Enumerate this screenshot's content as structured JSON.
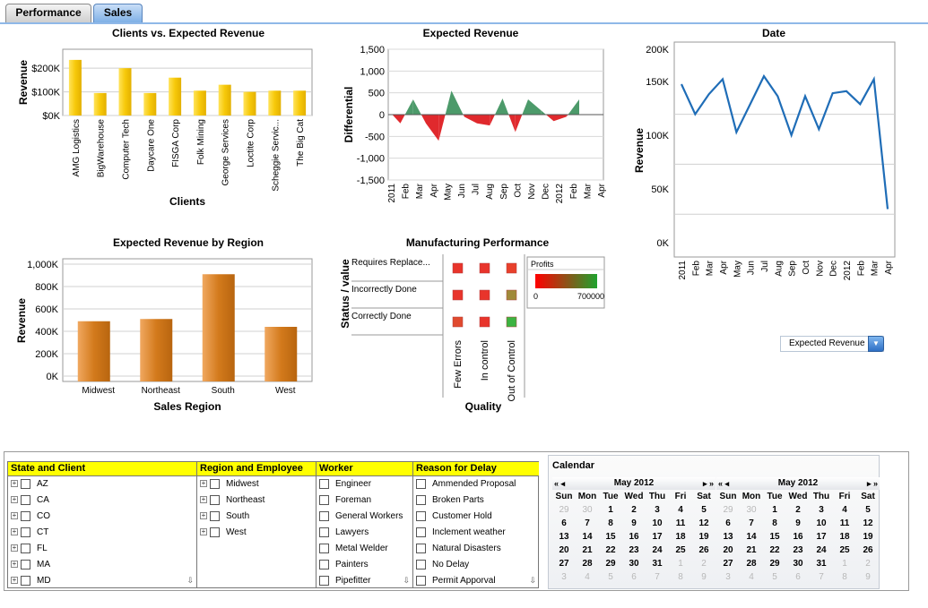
{
  "tabs": [
    {
      "label": "Performance",
      "active": false
    },
    {
      "label": "Sales",
      "active": true
    }
  ],
  "charts": {
    "clients": {
      "title": "Clients vs. Expected Revenue"
    },
    "expected": {
      "title": "Expected Revenue"
    },
    "date": {
      "title": "Date"
    },
    "region": {
      "title": "Expected Revenue by Region"
    },
    "mfg": {
      "title": "Manufacturing Performance"
    }
  },
  "chart_data": [
    {
      "type": "bar",
      "title": "Clients vs. Expected Revenue",
      "xlabel": "Clients",
      "ylabel": "Revenue",
      "categories": [
        "AMG Logistics",
        "BigWarehouse",
        "Computer Tech",
        "Daycare One",
        "FISGA Corp",
        "Folk Mining",
        "George Services",
        "Loctite Corp",
        "Scheggie Servic...",
        "The Big Cat"
      ],
      "values": [
        235000,
        95000,
        200000,
        95000,
        160000,
        105000,
        130000,
        100000,
        105000,
        105000
      ],
      "yticks": [
        "$0K",
        "$100K",
        "$200K"
      ],
      "ylim": [
        0,
        280000
      ],
      "color": "#f7c90a"
    },
    {
      "type": "area",
      "title": "Expected Revenue",
      "ylabel": "Differential",
      "x": [
        "2011",
        "Feb",
        "Mar",
        "Apr",
        "May",
        "Jun",
        "Jul",
        "Aug",
        "Sep",
        "Oct",
        "Nov",
        "Dec",
        "2012",
        "Feb",
        "Mar",
        "Apr"
      ],
      "values": [
        -200,
        350,
        -200,
        -600,
        550,
        -50,
        -200,
        -250,
        370,
        -400,
        350,
        100,
        -150,
        -50,
        350,
        null
      ],
      "yticks": [
        "1,500",
        "1,000",
        "500",
        "0",
        "-500",
        "-1,000",
        "-1,500"
      ],
      "ylim": [
        -1500,
        1500
      ],
      "pos_color": "#4c9a6a",
      "neg_color": "#e0292d"
    },
    {
      "type": "line",
      "title": "Date",
      "ylabel": "Revenue",
      "x": [
        "2011",
        "Feb",
        "Mar",
        "Apr",
        "May",
        "Jun",
        "Jul",
        "Aug",
        "Sep",
        "Oct",
        "Nov",
        "Dec",
        "2012",
        "Feb",
        "Mar",
        "Apr"
      ],
      "values": [
        155000,
        125000,
        145000,
        160000,
        107000,
        135000,
        163000,
        143000,
        104000,
        143000,
        110000,
        146000,
        148000,
        135000,
        160000,
        30000
      ],
      "yticks": [
        "200K",
        "150K",
        "100K",
        "50K",
        "0K"
      ],
      "ylim": [
        0,
        200000
      ],
      "color": "#1f6db7"
    },
    {
      "type": "bar",
      "title": "Expected Revenue by Region",
      "xlabel": "Sales Region",
      "ylabel": "Revenue",
      "categories": [
        "Midwest",
        "Northeast",
        "South",
        "West"
      ],
      "values": [
        490000,
        510000,
        910000,
        440000
      ],
      "yticks": [
        "0K",
        "200K",
        "400K",
        "600K",
        "800K",
        "1,000K"
      ],
      "ylim": [
        0,
        1000000
      ],
      "color": "#d07a1a"
    },
    {
      "type": "heatmap",
      "title": "Manufacturing Performance",
      "xlabel": "Quality",
      "ylabel": "Status / value",
      "rows": [
        "Requires Replace...",
        "Incorrectly Done",
        "Correctly Done"
      ],
      "cols": [
        "Few Errors",
        "In control",
        "Out of Control"
      ],
      "colors": [
        [
          "#e8342b",
          "#e8342b",
          "#e8402b"
        ],
        [
          "#e8342b",
          "#e8342b",
          "#a08a3a"
        ],
        [
          "#e04a2e",
          "#e8342b",
          "#3cb341"
        ]
      ],
      "legend": {
        "title": "Profits",
        "min": "0",
        "max": "700000"
      }
    }
  ],
  "selector": {
    "value": "Expected Revenue"
  },
  "filters": [
    {
      "head": "State and Client",
      "expand": true,
      "items": [
        "AZ",
        "CA",
        "CO",
        "CT",
        "FL",
        "MA",
        "MD"
      ]
    },
    {
      "head": "Region and Employee",
      "expand": true,
      "items": [
        "Midwest",
        "Northeast",
        "South",
        "West"
      ]
    },
    {
      "head": "Worker",
      "expand": false,
      "items": [
        "Engineer",
        "Foreman",
        "General Workers",
        "Lawyers",
        "Metal Welder",
        "Painters",
        "Pipefitter"
      ]
    },
    {
      "head": "Reason for Delay",
      "expand": false,
      "items": [
        "Ammended Proposal",
        "Broken Parts",
        "Customer Hold",
        "Inclement weather",
        "Natural Disasters",
        "No Delay",
        "Permit Apporval"
      ]
    }
  ],
  "calendar": {
    "title": "Calendar",
    "months": [
      {
        "label": "May 2012"
      },
      {
        "label": "May 2012"
      }
    ],
    "dayheads": [
      "Sun",
      "Mon",
      "Tue",
      "Wed",
      "Thu",
      "Fri",
      "Sat"
    ],
    "days": [
      [
        "29",
        "30",
        "1",
        "2",
        "3",
        "4",
        "5"
      ],
      [
        "6",
        "7",
        "8",
        "9",
        "10",
        "11",
        "12"
      ],
      [
        "13",
        "14",
        "15",
        "16",
        "17",
        "18",
        "19"
      ],
      [
        "20",
        "21",
        "22",
        "23",
        "24",
        "25",
        "26"
      ],
      [
        "27",
        "28",
        "29",
        "30",
        "31",
        "1",
        "2"
      ],
      [
        "3",
        "4",
        "5",
        "6",
        "7",
        "8",
        "9"
      ]
    ]
  }
}
